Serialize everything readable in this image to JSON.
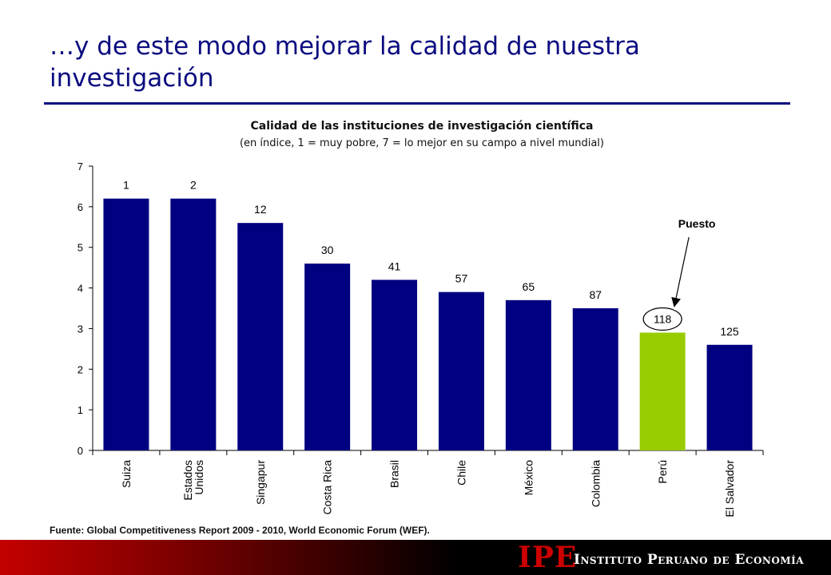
{
  "slide": {
    "title": "…y de este modo mejorar la calidad de nuestra investigación",
    "source": "Fuente: Global Competitiveness Report 2009 - 2010, World Economic Forum (WEF).",
    "logo": "IPE",
    "institute": "Instituto Peruano de Economía"
  },
  "colors": {
    "title": "#0b0b80",
    "bar": "#000080",
    "highlight": "#99cc00",
    "footer_red": "#c40000"
  },
  "chart_data": {
    "type": "bar",
    "title": "Calidad de las instituciones de investigación científica",
    "subtitle": "(en índice, 1 = muy pobre, 7 = lo mejor en su campo a nivel mundial)",
    "categories": [
      [
        "Suiza"
      ],
      [
        "Estados",
        "Unidos"
      ],
      [
        "Singapur"
      ],
      [
        "Costa Rica"
      ],
      [
        "Brasil"
      ],
      [
        "Chile"
      ],
      [
        "México"
      ],
      [
        "Colombia"
      ],
      [
        "Perú"
      ],
      [
        "El Salvador"
      ]
    ],
    "values": [
      6.2,
      6.2,
      5.6,
      4.6,
      4.2,
      3.9,
      3.7,
      3.5,
      2.9,
      2.6
    ],
    "ranks": [
      "1",
      "2",
      "12",
      "30",
      "41",
      "57",
      "65",
      "87",
      "118",
      "125"
    ],
    "highlight_index": 8,
    "ylim": [
      0,
      7
    ],
    "yticks": [
      "0",
      "1",
      "2",
      "3",
      "4",
      "5",
      "6",
      "7"
    ],
    "annotation": "Puesto",
    "grid": false
  }
}
